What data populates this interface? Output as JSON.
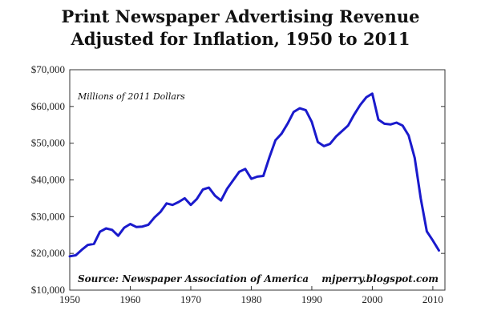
{
  "chart_data": {
    "type": "line",
    "title": "Print Newspaper Advertising Revenue",
    "subtitle": "Adjusted for Inflation, 1950 to 2011",
    "unit_note": "Millions of 2011 Dollars",
    "source": "Source: Newspaper Association of America",
    "credit": "mjperry.blogspot.com",
    "xlim": [
      1950,
      2012
    ],
    "ylim": [
      10000,
      70000
    ],
    "x_ticks": [
      1950,
      1960,
      1970,
      1980,
      1990,
      2000,
      2010
    ],
    "x_tick_labels": [
      "1950",
      "1960",
      "1970",
      "1980",
      "1990",
      "2000",
      "2010"
    ],
    "y_ticks": [
      10000,
      20000,
      30000,
      40000,
      50000,
      60000,
      70000
    ],
    "y_tick_labels": [
      "$10,000",
      "$20,000",
      "$30,000",
      "$40,000",
      "$50,000",
      "$60,000",
      "$70,000"
    ],
    "grid": false,
    "line_color": "#1a1acc",
    "series": [
      {
        "name": "",
        "x": [
          1950,
          1951,
          1952,
          1953,
          1954,
          1955,
          1956,
          1957,
          1958,
          1959,
          1960,
          1961,
          1962,
          1963,
          1964,
          1965,
          1966,
          1967,
          1968,
          1969,
          1970,
          1971,
          1972,
          1973,
          1974,
          1975,
          1976,
          1977,
          1978,
          1979,
          1980,
          1981,
          1982,
          1983,
          1984,
          1985,
          1986,
          1987,
          1988,
          1989,
          1990,
          1991,
          1992,
          1993,
          1994,
          1995,
          1996,
          1997,
          1998,
          1999,
          2000,
          2001,
          2002,
          2003,
          2004,
          2005,
          2006,
          2007,
          2008,
          2009,
          2010,
          2011
        ],
        "values": [
          19200,
          19500,
          21000,
          22300,
          22600,
          25900,
          26800,
          26400,
          24800,
          27000,
          28000,
          27200,
          27300,
          27800,
          29800,
          31300,
          33600,
          33200,
          34000,
          35000,
          33200,
          34800,
          37400,
          37900,
          35700,
          34400,
          37600,
          39900,
          42200,
          43000,
          40300,
          40900,
          41100,
          46200,
          50800,
          52600,
          55300,
          58500,
          59500,
          59000,
          55800,
          50300,
          49200,
          49800,
          51800,
          53300,
          54800,
          57800,
          60400,
          62500,
          63500,
          56400,
          55300,
          55100,
          55600,
          54800,
          52100,
          46000,
          35000,
          26000,
          23500,
          20800
        ]
      }
    ]
  }
}
